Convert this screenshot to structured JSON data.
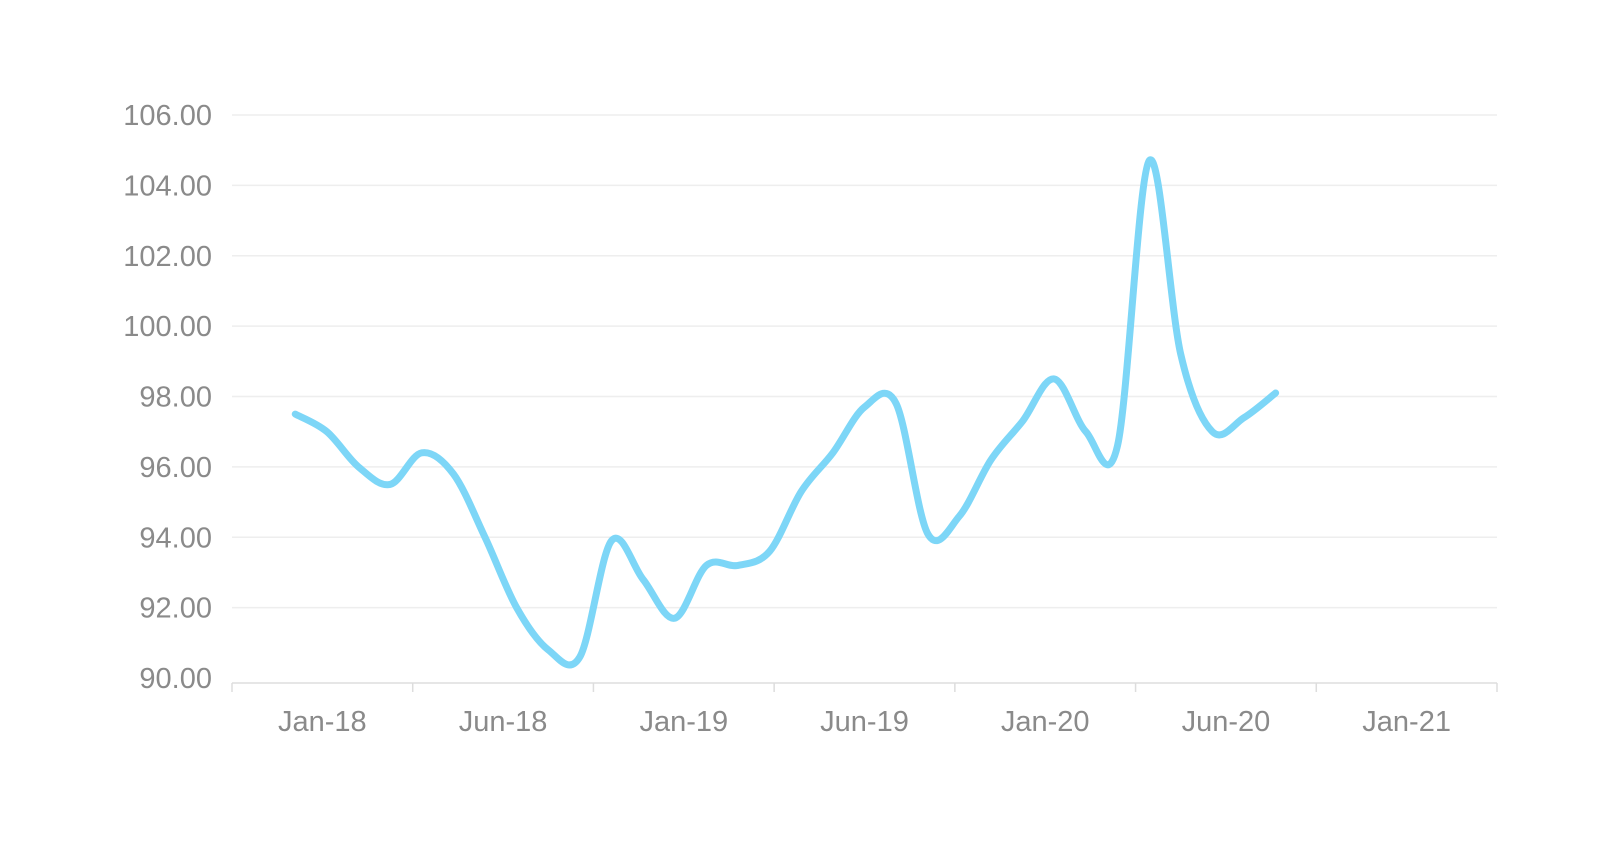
{
  "chart_data": {
    "type": "line",
    "title": "",
    "xlabel": "",
    "ylabel": "",
    "x_ticks": [
      "Jan-18",
      "Jun-18",
      "Jan-19",
      "Jun-19",
      "Jan-20",
      "Jun-20",
      "Jan-21"
    ],
    "y_ticks": [
      "90.00",
      "92.00",
      "94.00",
      "96.00",
      "98.00",
      "100.00",
      "102.00",
      "104.00",
      "106.00"
    ],
    "ylim": [
      90,
      106
    ],
    "xlim": [
      "2017-11",
      "2021-03"
    ],
    "grid": true,
    "legend": "none",
    "series": [
      {
        "color": "#7dd6f7",
        "points": [
          {
            "x": "2018-01",
            "y": 97.5
          },
          {
            "x": "2018-02",
            "y": 97.0
          },
          {
            "x": "2018-03",
            "y": 96.0
          },
          {
            "x": "2018-04",
            "y": 95.5
          },
          {
            "x": "2018-05",
            "y": 96.4
          },
          {
            "x": "2018-06",
            "y": 95.8
          },
          {
            "x": "2018-07",
            "y": 94.0
          },
          {
            "x": "2018-08",
            "y": 92.0
          },
          {
            "x": "2018-09",
            "y": 90.8
          },
          {
            "x": "2018-10",
            "y": 90.6
          },
          {
            "x": "2018-11",
            "y": 93.9
          },
          {
            "x": "2018-12",
            "y": 92.8
          },
          {
            "x": "2019-01",
            "y": 91.7
          },
          {
            "x": "2019-02",
            "y": 93.2
          },
          {
            "x": "2019-03",
            "y": 93.2
          },
          {
            "x": "2019-04",
            "y": 93.6
          },
          {
            "x": "2019-05",
            "y": 95.3
          },
          {
            "x": "2019-06",
            "y": 96.4
          },
          {
            "x": "2019-07",
            "y": 97.7
          },
          {
            "x": "2019-08",
            "y": 97.8
          },
          {
            "x": "2019-09",
            "y": 94.1
          },
          {
            "x": "2019-10",
            "y": 94.6
          },
          {
            "x": "2019-11",
            "y": 96.2
          },
          {
            "x": "2019-12",
            "y": 97.3
          },
          {
            "x": "2020-01",
            "y": 98.5
          },
          {
            "x": "2020-02",
            "y": 97.0
          },
          {
            "x": "2020-03",
            "y": 96.6
          },
          {
            "x": "2020-04",
            "y": 104.7
          },
          {
            "x": "2020-05",
            "y": 99.2
          },
          {
            "x": "2020-06",
            "y": 97.0
          },
          {
            "x": "2020-07",
            "y": 97.4
          },
          {
            "x": "2020-08",
            "y": 98.1
          }
        ]
      }
    ]
  }
}
